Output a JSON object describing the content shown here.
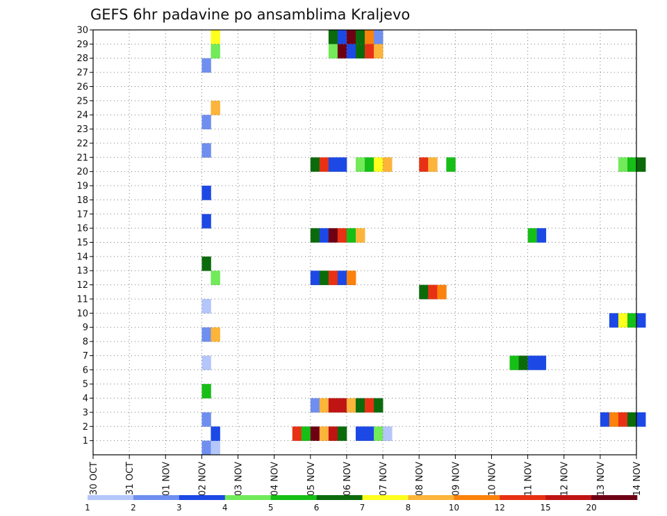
{
  "chart_data": {
    "type": "heatmap",
    "title": "GEFS 6hr padavine po ansamblima Kraljevo",
    "xlabel": "",
    "ylabel": "",
    "x_range": [
      "2024-10-30T00:00",
      "2024-11-14T00:00"
    ],
    "y_range": [
      0,
      30
    ],
    "grid": true,
    "x_tick_labels": [
      "30 OCT",
      "31 OCT",
      "01 NOV",
      "02 NOV",
      "03 NOV",
      "04 NOV",
      "05 NOV",
      "06 NOV",
      "07 NOV",
      "08 NOV",
      "09 NOV",
      "10 NOV",
      "11 NOV",
      "12 NOV",
      "13 NOV",
      "14 NOV"
    ],
    "y_tick_labels": [
      "1",
      "2",
      "3",
      "4",
      "5",
      "6",
      "7",
      "8",
      "9",
      "10",
      "11",
      "12",
      "13",
      "14",
      "15",
      "16",
      "17",
      "18",
      "19",
      "20",
      "21",
      "22",
      "23",
      "24",
      "25",
      "26",
      "27",
      "28",
      "29",
      "30"
    ],
    "legend": {
      "placement": "bottom",
      "levels": [
        "1",
        "2",
        "3",
        "4",
        "5",
        "6",
        "7",
        "8",
        "10",
        "12",
        "15",
        "20"
      ],
      "colors": [
        "#b4c6fa",
        "#6f8ff0",
        "#1c48e6",
        "#72ea5a",
        "#16bf16",
        "#0b6b0b",
        "#ffff1e",
        "#fcb43a",
        "#fb820c",
        "#e83114",
        "#c01414",
        "#6e0014"
      ]
    },
    "time_step_hours": 6,
    "cells_note": "x = valid time (6h step), y = ensemble member, v = precipitation class index into legend.levels",
    "cells": [
      {
        "x": "2024-11-02T00:00",
        "y": 0,
        "v": 1
      },
      {
        "x": "2024-11-02T00:00",
        "y": 2,
        "v": 1
      },
      {
        "x": "2024-11-02T00:00",
        "y": 8,
        "v": 1
      },
      {
        "x": "2024-11-02T00:00",
        "y": 10,
        "v": 0
      },
      {
        "x": "2024-11-02T00:00",
        "y": 16,
        "v": 2
      },
      {
        "x": "2024-11-02T00:00",
        "y": 18,
        "v": 2
      },
      {
        "x": "2024-11-02T00:00",
        "y": 21,
        "v": 1
      },
      {
        "x": "2024-11-02T00:00",
        "y": 27,
        "v": 1
      },
      {
        "x": "2024-11-02T00:00",
        "y": 23,
        "v": 1
      },
      {
        "x": "2024-11-02T00:00",
        "y": 4,
        "v": 4
      },
      {
        "x": "2024-11-02T00:00",
        "y": 6,
        "v": 0
      },
      {
        "x": "2024-11-02T00:00",
        "y": 13,
        "v": 5
      },
      {
        "x": "2024-11-02T06:00",
        "y": 0,
        "v": 0
      },
      {
        "x": "2024-11-02T06:00",
        "y": 1,
        "v": 2
      },
      {
        "x": "2024-11-02T06:00",
        "y": 8,
        "v": 7
      },
      {
        "x": "2024-11-02T06:00",
        "y": 12,
        "v": 3
      },
      {
        "x": "2024-11-02T06:00",
        "y": 24,
        "v": 7
      },
      {
        "x": "2024-11-02T06:00",
        "y": 29,
        "v": 6
      },
      {
        "x": "2024-11-02T06:00",
        "y": 28,
        "v": 3
      },
      {
        "x": "2024-11-05T00:00",
        "y": 3,
        "v": 1
      },
      {
        "x": "2024-11-05T06:00",
        "y": 3,
        "v": 7
      },
      {
        "x": "2024-11-05T12:00",
        "y": 3,
        "v": 10
      },
      {
        "x": "2024-11-05T18:00",
        "y": 3,
        "v": 10
      },
      {
        "x": "2024-11-06T00:00",
        "y": 3,
        "v": 7
      },
      {
        "x": "2024-11-06T06:00",
        "y": 3,
        "v": 5
      },
      {
        "x": "2024-11-06T12:00",
        "y": 3,
        "v": 9
      },
      {
        "x": "2024-11-06T18:00",
        "y": 3,
        "v": 5
      },
      {
        "x": "2024-11-05T00:00",
        "y": 12,
        "v": 2
      },
      {
        "x": "2024-11-05T06:00",
        "y": 12,
        "v": 5
      },
      {
        "x": "2024-11-05T12:00",
        "y": 12,
        "v": 9
      },
      {
        "x": "2024-11-05T18:00",
        "y": 12,
        "v": 2
      },
      {
        "x": "2024-11-06T00:00",
        "y": 12,
        "v": 8
      },
      {
        "x": "2024-11-05T00:00",
        "y": 20,
        "v": 5
      },
      {
        "x": "2024-11-05T06:00",
        "y": 20,
        "v": 9
      },
      {
        "x": "2024-11-05T12:00",
        "y": 20,
        "v": 2
      },
      {
        "x": "2024-11-05T18:00",
        "y": 20,
        "v": 2
      },
      {
        "x": "2024-11-06T06:00",
        "y": 20,
        "v": 3
      },
      {
        "x": "2024-11-06T12:00",
        "y": 20,
        "v": 4
      },
      {
        "x": "2024-11-06T18:00",
        "y": 20,
        "v": 6
      },
      {
        "x": "2024-11-07T00:00",
        "y": 20,
        "v": 7
      },
      {
        "x": "2024-11-08T00:00",
        "y": 20,
        "v": 9
      },
      {
        "x": "2024-11-08T06:00",
        "y": 20,
        "v": 7
      },
      {
        "x": "2024-11-08T18:00",
        "y": 20,
        "v": 4
      },
      {
        "x": "2024-11-05T12:00",
        "y": 29,
        "v": 5
      },
      {
        "x": "2024-11-05T18:00",
        "y": 29,
        "v": 2
      },
      {
        "x": "2024-11-06T00:00",
        "y": 29,
        "v": 11
      },
      {
        "x": "2024-11-06T06:00",
        "y": 29,
        "v": 5
      },
      {
        "x": "2024-11-06T12:00",
        "y": 29,
        "v": 8
      },
      {
        "x": "2024-11-06T18:00",
        "y": 29,
        "v": 1
      },
      {
        "x": "2024-11-05T12:00",
        "y": 28,
        "v": 3
      },
      {
        "x": "2024-11-05T18:00",
        "y": 28,
        "v": 11
      },
      {
        "x": "2024-11-06T00:00",
        "y": 28,
        "v": 2
      },
      {
        "x": "2024-11-06T06:00",
        "y": 28,
        "v": 5
      },
      {
        "x": "2024-11-06T12:00",
        "y": 28,
        "v": 9
      },
      {
        "x": "2024-11-06T18:00",
        "y": 28,
        "v": 7
      },
      {
        "x": "2024-11-05T00:00",
        "y": 15,
        "v": 5
      },
      {
        "x": "2024-11-05T06:00",
        "y": 15,
        "v": 2
      },
      {
        "x": "2024-11-05T12:00",
        "y": 15,
        "v": 11
      },
      {
        "x": "2024-11-05T18:00",
        "y": 15,
        "v": 9
      },
      {
        "x": "2024-11-06T00:00",
        "y": 15,
        "v": 4
      },
      {
        "x": "2024-11-06T06:00",
        "y": 15,
        "v": 7
      },
      {
        "x": "2024-11-04T12:00",
        "y": 1,
        "v": 9
      },
      {
        "x": "2024-11-04T18:00",
        "y": 1,
        "v": 4
      },
      {
        "x": "2024-11-05T00:00",
        "y": 1,
        "v": 11
      },
      {
        "x": "2024-11-05T06:00",
        "y": 1,
        "v": 7
      },
      {
        "x": "2024-11-05T12:00",
        "y": 1,
        "v": 10
      },
      {
        "x": "2024-11-05T18:00",
        "y": 1,
        "v": 5
      },
      {
        "x": "2024-11-06T06:00",
        "y": 1,
        "v": 2
      },
      {
        "x": "2024-11-06T12:00",
        "y": 1,
        "v": 2
      },
      {
        "x": "2024-11-06T18:00",
        "y": 1,
        "v": 3
      },
      {
        "x": "2024-11-07T00:00",
        "y": 1,
        "v": 0
      },
      {
        "x": "2024-11-08T00:00",
        "y": 11,
        "v": 5
      },
      {
        "x": "2024-11-08T06:00",
        "y": 11,
        "v": 9
      },
      {
        "x": "2024-11-08T12:00",
        "y": 11,
        "v": 8
      },
      {
        "x": "2024-11-10T12:00",
        "y": 6,
        "v": 4
      },
      {
        "x": "2024-11-10T18:00",
        "y": 6,
        "v": 5
      },
      {
        "x": "2024-11-11T00:00",
        "y": 6,
        "v": 2
      },
      {
        "x": "2024-11-11T06:00",
        "y": 6,
        "v": 2
      },
      {
        "x": "2024-11-11T00:00",
        "y": 15,
        "v": 4
      },
      {
        "x": "2024-11-11T06:00",
        "y": 15,
        "v": 2
      },
      {
        "x": "2024-11-13T00:00",
        "y": 2,
        "v": 2
      },
      {
        "x": "2024-11-13T06:00",
        "y": 2,
        "v": 8
      },
      {
        "x": "2024-11-13T12:00",
        "y": 2,
        "v": 9
      },
      {
        "x": "2024-11-13T18:00",
        "y": 2,
        "v": 5
      },
      {
        "x": "2024-11-14T00:00",
        "y": 2,
        "v": 2
      },
      {
        "x": "2024-11-13T06:00",
        "y": 9,
        "v": 2
      },
      {
        "x": "2024-11-13T12:00",
        "y": 9,
        "v": 6
      },
      {
        "x": "2024-11-13T18:00",
        "y": 9,
        "v": 4
      },
      {
        "x": "2024-11-14T00:00",
        "y": 9,
        "v": 2
      },
      {
        "x": "2024-11-13T12:00",
        "y": 20,
        "v": 3
      },
      {
        "x": "2024-11-13T18:00",
        "y": 20,
        "v": 4
      },
      {
        "x": "2024-11-14T00:00",
        "y": 20,
        "v": 5
      }
    ]
  }
}
